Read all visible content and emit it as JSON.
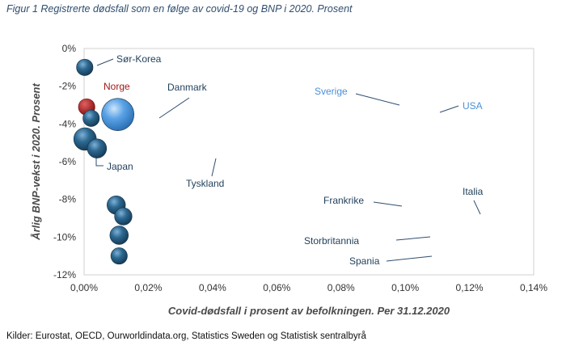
{
  "figure_title": "Figur 1 Registrerte dødsfall som en følge av covid-19 og BNP i 2020. Prosent",
  "source_note": "Kilder: Eurostat, OECD, Ourworldindata.org, Statistics Sweden og Statistisk sentralbyrå",
  "colors": {
    "bubble_dark": "#1f4e6f",
    "bubble_highlight": "#5b8fb5",
    "norway": "#a01818",
    "sweden_usa": "#4a90d9",
    "label_text": "#1f3f5a",
    "leader": "#2f4e6e"
  },
  "chart_data": {
    "type": "scatter",
    "title": "Figur 1 Registrerte dødsfall som en følge av covid-19 og BNP i 2020. Prosent",
    "xlabel": "Covid-dødsfall i prosent av befolkningen. Per 31.12.2020",
    "ylabel": "Årlig BNP-vekst i 2020. Prosent",
    "xlim": [
      0,
      0.14
    ],
    "ylim": [
      -12,
      0
    ],
    "x_ticks": [
      0,
      0.02,
      0.04,
      0.06,
      0.08,
      0.1,
      0.12,
      0.14
    ],
    "x_tick_labels": [
      "0,00%",
      "0,02%",
      "0,04%",
      "0,06%",
      "0,08%",
      "0,10%",
      "0,12%",
      "0,14%"
    ],
    "y_ticks": [
      0,
      -2,
      -4,
      -6,
      -8,
      -10,
      -12
    ],
    "y_tick_labels": [
      "0%",
      "-2%",
      "-4%",
      "-6%",
      "-8%",
      "-10%",
      "-12%"
    ],
    "grid": false,
    "points": [
      {
        "name": "Sør-Korea",
        "x": 0.0002,
        "y": -1.0,
        "size": 5
      },
      {
        "name": "Norge",
        "x": 0.0008,
        "y": -3.1,
        "size": 5
      },
      {
        "name": "Danmark",
        "x": 0.0022,
        "y": -3.7,
        "size": 5
      },
      {
        "name": "Japan",
        "x": 0.0003,
        "y": -4.8,
        "size": 13
      },
      {
        "name": "Tyskland",
        "x": 0.004,
        "y": -5.3,
        "size": 8
      },
      {
        "name": "Sverige",
        "x": 0.0097,
        "y": -3.0,
        "size": 1
      },
      {
        "name": "USA",
        "x": 0.0105,
        "y": -3.5,
        "size": 33
      },
      {
        "name": "Frankrike",
        "x": 0.01,
        "y": -8.3,
        "size": 7
      },
      {
        "name": "Italia",
        "x": 0.0122,
        "y": -8.9,
        "size": 6
      },
      {
        "name": "Storbritannia",
        "x": 0.0109,
        "y": -9.9,
        "size": 7
      },
      {
        "name": "Spania",
        "x": 0.0109,
        "y": -11.0,
        "size": 5
      }
    ]
  }
}
